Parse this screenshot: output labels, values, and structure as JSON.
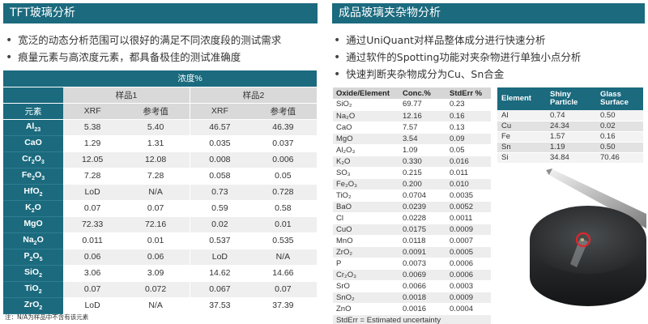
{
  "left": {
    "title": "TFT玻璃分析",
    "bullets": [
      "宽泛的动态分析范围可以很好的满足不同浓度段的测试需求",
      "痕量元素与高浓度元素，都具备极佳的测试准确度"
    ],
    "table": {
      "concentration_header": "浓度%",
      "samples": [
        "样品1",
        "样品2"
      ],
      "element_header": "元素",
      "sub_headers": [
        "XRF",
        "参考值",
        "XRF",
        "参考值"
      ],
      "rows": [
        {
          "el": "Al",
          "sub1": "2",
          "mid": "",
          "sub2": "3",
          "vals": [
            "5.38",
            "5.40",
            "46.57",
            "46.39"
          ]
        },
        {
          "el": "CaO",
          "sub1": "",
          "mid": "",
          "sub2": "",
          "vals": [
            "1.29",
            "1.31",
            "0.035",
            "0.037"
          ]
        },
        {
          "el": "Cr",
          "sub1": "2",
          "mid": "O",
          "sub2": "3",
          "vals": [
            "12.05",
            "12.08",
            "0.008",
            "0.006"
          ]
        },
        {
          "el": "Fe",
          "sub1": "2",
          "mid": "O",
          "sub2": "3",
          "vals": [
            "7.28",
            "7.28",
            "0.058",
            "0.05"
          ]
        },
        {
          "el": "HfO",
          "sub1": "2",
          "mid": "",
          "sub2": "",
          "vals": [
            "LoD",
            "N/A",
            "0.73",
            "0.728"
          ]
        },
        {
          "el": "K",
          "sub1": "2",
          "mid": "O",
          "sub2": "",
          "vals": [
            "0.07",
            "0.07",
            "0.59",
            "0.58"
          ]
        },
        {
          "el": "MgO",
          "sub1": "",
          "mid": "",
          "sub2": "",
          "vals": [
            "72.33",
            "72.16",
            "0.02",
            "0.01"
          ]
        },
        {
          "el": "Na",
          "sub1": "2",
          "mid": "O",
          "sub2": "",
          "vals": [
            "0.011",
            "0.01",
            "0.537",
            "0.535"
          ]
        },
        {
          "el": "P",
          "sub1": "2",
          "mid": "O",
          "sub2": "5",
          "vals": [
            "0.06",
            "0.06",
            "LoD",
            "N/A"
          ]
        },
        {
          "el": "SiO",
          "sub1": "2",
          "mid": "",
          "sub2": "",
          "vals": [
            "3.06",
            "3.09",
            "14.62",
            "14.66"
          ]
        },
        {
          "el": "TiO",
          "sub1": "2",
          "mid": "",
          "sub2": "",
          "vals": [
            "0.07",
            "0.072",
            "0.067",
            "0.07"
          ]
        },
        {
          "el": "ZrO",
          "sub1": "2",
          "mid": "",
          "sub2": "",
          "vals": [
            "LoD",
            "N/A",
            "37.53",
            "37.39"
          ]
        }
      ]
    },
    "note": "注：N/A为样品中不含有该元素"
  },
  "right": {
    "title": "成品玻璃夹杂物分析",
    "bullets": [
      "通过UniQuant对样品整体成分进行快速分析",
      "通过软件的Spotting功能对夹杂物进行单独小点分析",
      "快速判断夹杂物成分为Cu、Sn合金"
    ],
    "oxide_table": {
      "headers": [
        "Oxide/Element",
        "Conc.%",
        "StdErr %"
      ],
      "rows": [
        [
          "SiO₂",
          "69.77",
          "0.23"
        ],
        [
          "Na₂O",
          "12.16",
          "0.16"
        ],
        [
          "CaO",
          "7.57",
          "0.13"
        ],
        [
          "MgO",
          "3.54",
          "0.09"
        ],
        [
          "Al₂O₃",
          "1.09",
          "0.05"
        ],
        [
          "K₂O",
          "0.330",
          "0.016"
        ],
        [
          "SO₃",
          "0.215",
          "0.011"
        ],
        [
          "Fe₂O₃",
          "0.200",
          "0.010"
        ],
        [
          "TiO₂",
          "0.0704",
          "0.0035"
        ],
        [
          "BaO",
          "0.0239",
          "0.0052"
        ],
        [
          "Cl",
          "0.0228",
          "0.0011"
        ],
        [
          "CuO",
          "0.0175",
          "0.0009"
        ],
        [
          "MnO",
          "0.0118",
          "0.0007"
        ],
        [
          "ZrO₂",
          "0.0091",
          "0.0005"
        ],
        [
          "P",
          "0.0073",
          "0.0006"
        ],
        [
          "Cr₂O₃",
          "0.0069",
          "0.0006"
        ],
        [
          "SrO",
          "0.0066",
          "0.0003"
        ],
        [
          "SnO₂",
          "0.0018",
          "0.0009"
        ],
        [
          "ZnO",
          "0.0016",
          "0.0004"
        ]
      ],
      "footnote": "StdErr = Estimated uncertainty"
    },
    "element_table": {
      "headers": [
        "Element",
        "Shiny Particle",
        "Glass Surface"
      ],
      "rows": [
        [
          "Al",
          "0.74",
          "0.50"
        ],
        [
          "Cu",
          "24.34",
          "0.02"
        ],
        [
          "Fe",
          "1.57",
          "0.16"
        ],
        [
          "Sn",
          "1.19",
          "0.50"
        ],
        [
          "Si",
          "34.84",
          "70.46"
        ]
      ]
    }
  },
  "colors": {
    "accent": "#1b6a7e",
    "highlight_ring": "#e0262b"
  }
}
